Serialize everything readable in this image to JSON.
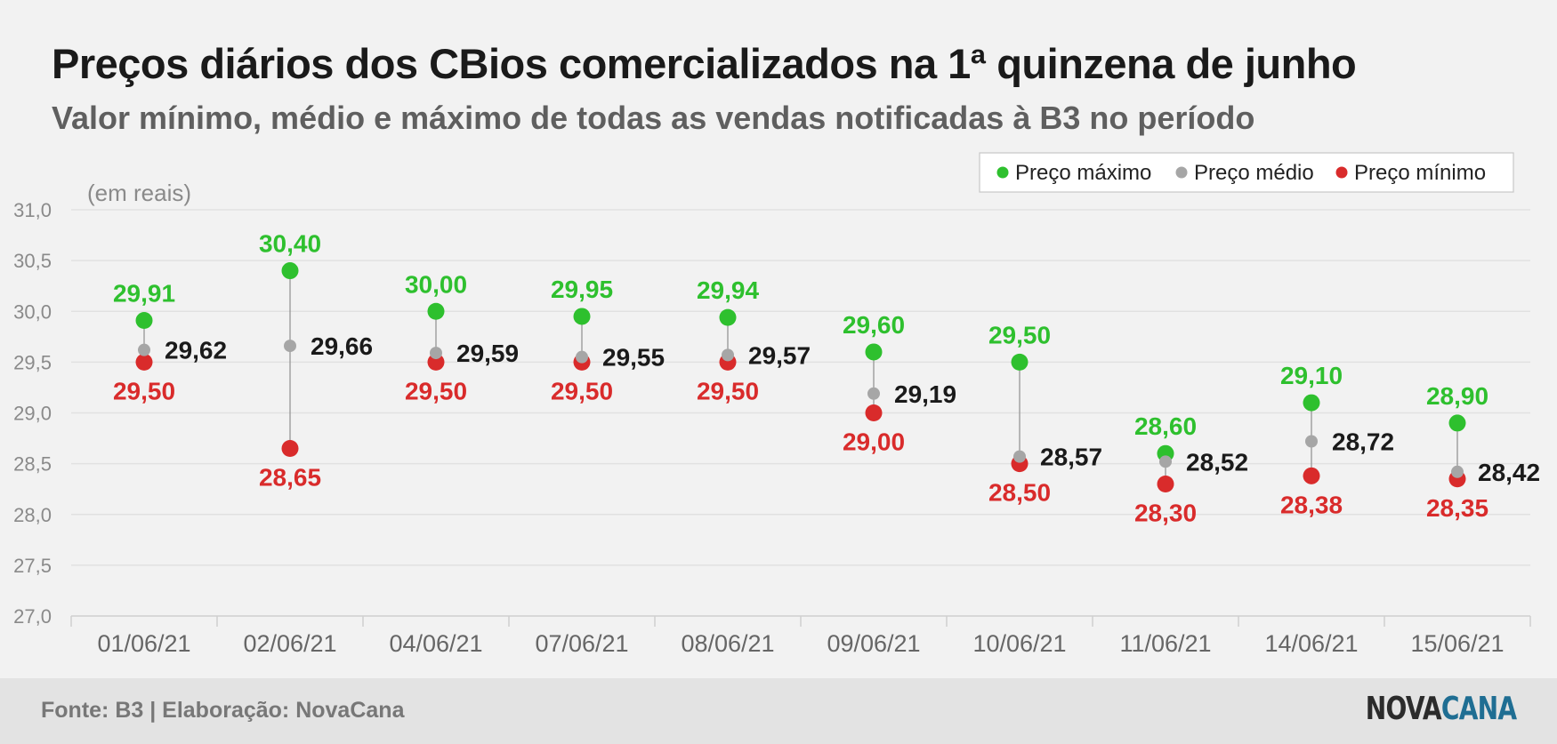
{
  "header": {
    "title": "Preços diários dos CBios comercializados na 1ª quinzena de junho",
    "subtitle": "Valor mínimo, médio e máximo de todas as vendas notificadas à B3 no período"
  },
  "footer": {
    "source": "Fonte: B3 | Elaboração: NovaCana",
    "logo_part1": "NOVA",
    "logo_part2": "CANA"
  },
  "colors": {
    "max": "#2ec02e",
    "avg": "#a6a6a6",
    "min": "#d92b2b",
    "avg_label": "#1a1a1a"
  },
  "chart_data": {
    "type": "scatter",
    "unit_label": "(em reais)",
    "ylim": [
      27.0,
      31.0
    ],
    "yticks": [
      "27,0",
      "27,5",
      "28,0",
      "28,5",
      "29,0",
      "29,5",
      "30,0",
      "30,5",
      "31,0"
    ],
    "grid": true,
    "legend_position": "top-right",
    "categories": [
      "01/06/21",
      "02/06/21",
      "04/06/21",
      "07/06/21",
      "08/06/21",
      "09/06/21",
      "10/06/21",
      "11/06/21",
      "14/06/21",
      "15/06/21"
    ],
    "series": [
      {
        "name": "Preço máximo",
        "key": "max",
        "values": [
          29.91,
          30.4,
          30.0,
          29.95,
          29.94,
          29.6,
          29.5,
          28.6,
          29.1,
          28.9
        ],
        "labels": [
          "29,91",
          "30,40",
          "30,00",
          "29,95",
          "29,94",
          "29,60",
          "29,50",
          "28,60",
          "29,10",
          "28,90"
        ]
      },
      {
        "name": "Preço médio",
        "key": "avg",
        "values": [
          29.62,
          29.66,
          29.59,
          29.55,
          29.57,
          29.19,
          28.57,
          28.52,
          28.72,
          28.42
        ],
        "labels": [
          "29,62",
          "29,66",
          "29,59",
          "29,55",
          "29,57",
          "29,19",
          "28,57",
          "28,52",
          "28,72",
          "28,42"
        ]
      },
      {
        "name": "Preço mínimo",
        "key": "min",
        "values": [
          29.5,
          28.65,
          29.5,
          29.5,
          29.5,
          29.0,
          28.5,
          28.3,
          28.38,
          28.35
        ],
        "labels": [
          "29,50",
          "28,65",
          "29,50",
          "29,50",
          "29,50",
          "29,00",
          "28,50",
          "28,30",
          "28,38",
          "28,35"
        ]
      }
    ]
  }
}
